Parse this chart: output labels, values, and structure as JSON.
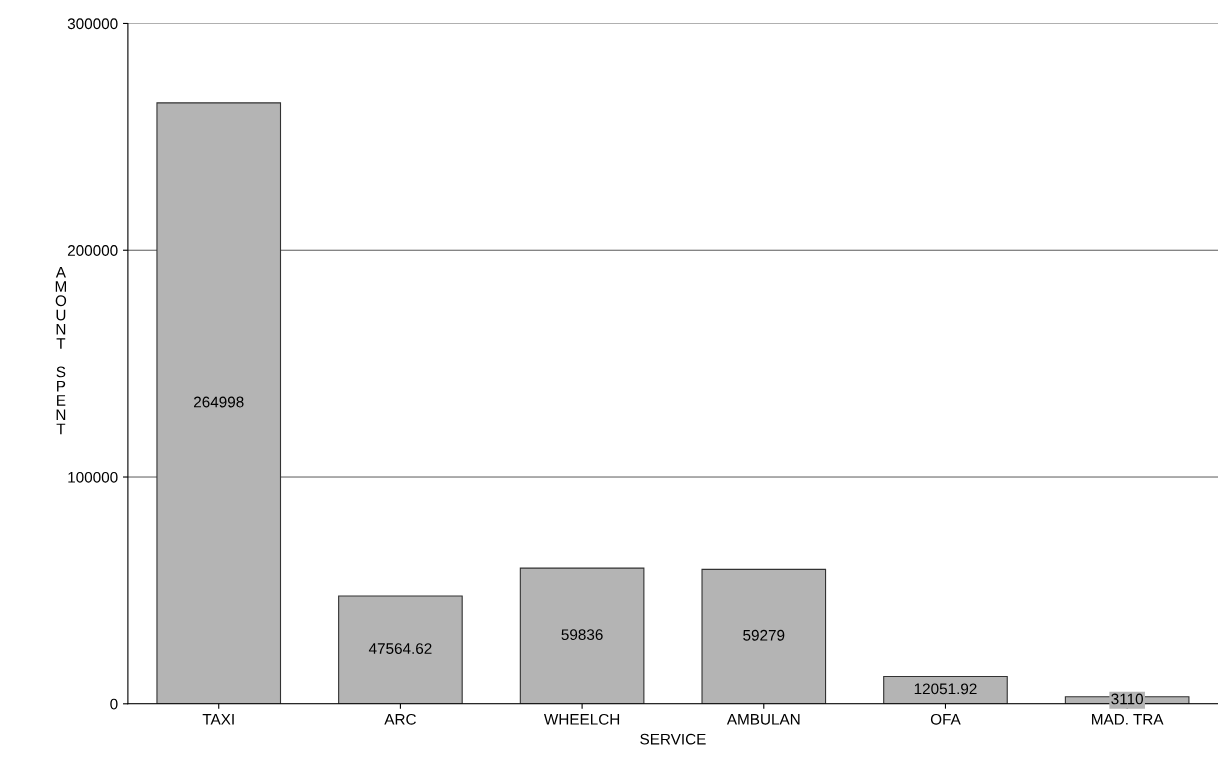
{
  "chart_data": {
    "type": "bar",
    "xlabel": "SERVICE",
    "ylabel": "AMOUNT SPENT",
    "categories": [
      "TAXI",
      "ARC",
      "WHEELCH",
      "AMBULAN",
      "OFA",
      "MAD. TRA"
    ],
    "values": [
      264998,
      47564.62,
      59836,
      59279,
      12051.92,
      3110
    ],
    "color": "#b4b4b4",
    "ylim": [
      0,
      300000
    ],
    "yticks": [
      0,
      100000,
      200000,
      300000
    ],
    "grid": "y",
    "data_labels": true
  }
}
